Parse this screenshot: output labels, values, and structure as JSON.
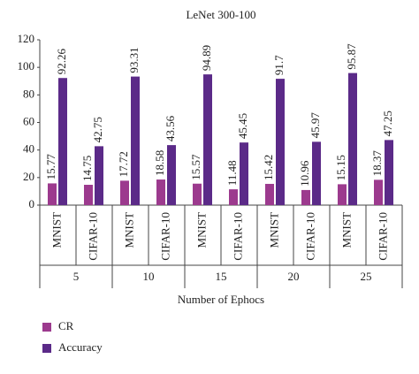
{
  "chart_data": {
    "type": "bar",
    "title": "LeNet 300-100",
    "categories": [
      "MNIST",
      "CIFAR-10",
      "MNIST",
      "CIFAR-10",
      "MNIST",
      "CIFAR-10",
      "MNIST",
      "CIFAR-10",
      "MNIST",
      "CIFAR-10"
    ],
    "groups": [
      "5",
      "10",
      "15",
      "20",
      "25"
    ],
    "x_label": "Number of Ephocs",
    "series": [
      {
        "name": "CR",
        "color": "#9c3a8e",
        "values": [
          15.77,
          14.75,
          17.72,
          18.58,
          15.57,
          11.48,
          15.42,
          10.96,
          15.15,
          18.37
        ]
      },
      {
        "name": "Accuracy",
        "color": "#5b2a88",
        "values": [
          92.26,
          42.75,
          93.31,
          43.56,
          94.89,
          45.45,
          91.7,
          45.97,
          95.87,
          47.25
        ]
      }
    ],
    "ylim": [
      0,
      120
    ],
    "yticks": [
      0,
      20,
      40,
      60,
      80,
      100,
      120
    ],
    "grid": false
  }
}
